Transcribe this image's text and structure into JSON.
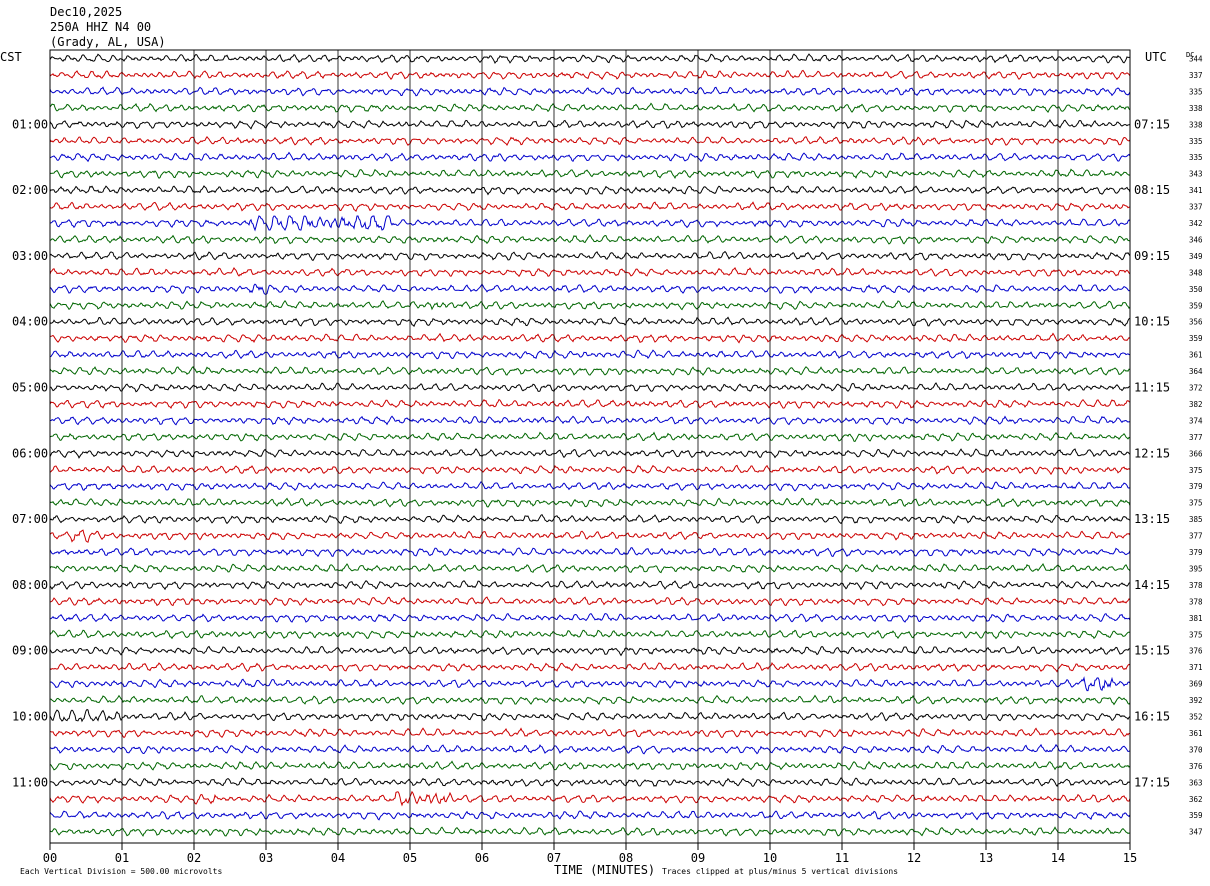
{
  "header": {
    "date": "Dec10,2025",
    "station": "250A HHZ N4 00",
    "location": "(Grady, AL, USA)"
  },
  "left_timezone": "CST",
  "right_timezone": "UTC",
  "dc_label": "DC",
  "footer": {
    "vertical_division": "Each Vertical Division =  500.00 microvolts",
    "xlabel": "TIME (MINUTES)",
    "clip_note": "Traces clipped at plus/minus 5 vertical divisions"
  },
  "colors": {
    "trace_cycle": [
      "#000000",
      "#cc0000",
      "#0000cc",
      "#006600"
    ],
    "grid": "#000000",
    "background": "#ffffff"
  },
  "chart_data": {
    "type": "line",
    "title": "",
    "xlabel": "TIME (MINUTES)",
    "ylabel": "",
    "xlim": [
      0,
      15
    ],
    "x_ticks": [
      "00",
      "01",
      "02",
      "03",
      "04",
      "05",
      "06",
      "07",
      "08",
      "09",
      "10",
      "11",
      "12",
      "13",
      "14",
      "15"
    ],
    "trace_count": 48,
    "traces_per_hour": 4,
    "grid": true,
    "left_hour_labels": [
      "01:00",
      "02:00",
      "03:00",
      "04:00",
      "05:00",
      "06:00",
      "07:00",
      "08:00",
      "09:00",
      "10:00",
      "11:00"
    ],
    "right_hour_labels": [
      "07:15",
      "08:15",
      "09:15",
      "10:15",
      "11:15",
      "12:15",
      "13:15",
      "14:15",
      "15:15",
      "16:15",
      "17:15"
    ],
    "dc_offsets": [
      344,
      337,
      335,
      338,
      338,
      335,
      335,
      343,
      341,
      337,
      342,
      346,
      349,
      348,
      350,
      359,
      356,
      359,
      361,
      364,
      372,
      382,
      374,
      377,
      366,
      375,
      379,
      375,
      385,
      377,
      379,
      395,
      378,
      378,
      381,
      375,
      376,
      371,
      369,
      392,
      352,
      361,
      370,
      376,
      363,
      362,
      359,
      347
    ],
    "events": [
      {
        "trace": 10,
        "x_min": 2.75,
        "x_max": 4.75,
        "amp": 2.5
      },
      {
        "trace": 14,
        "x_min": 2.8,
        "x_max": 3.05,
        "amp": 1.7
      },
      {
        "trace": 15,
        "x_min": 5.3,
        "x_max": 5.6,
        "amp": 1.7
      },
      {
        "trace": 29,
        "x_min": 0.3,
        "x_max": 0.7,
        "amp": 1.8
      },
      {
        "trace": 38,
        "x_min": 14.35,
        "x_max": 14.75,
        "amp": 3.0
      },
      {
        "trace": 40,
        "x_min": 0.0,
        "x_max": 1.0,
        "amp": 1.8
      },
      {
        "trace": 45,
        "x_min": 4.8,
        "x_max": 5.6,
        "amp": 2.4
      },
      {
        "trace": 45,
        "x_min": 1.95,
        "x_max": 2.3,
        "amp": 1.6
      }
    ]
  }
}
